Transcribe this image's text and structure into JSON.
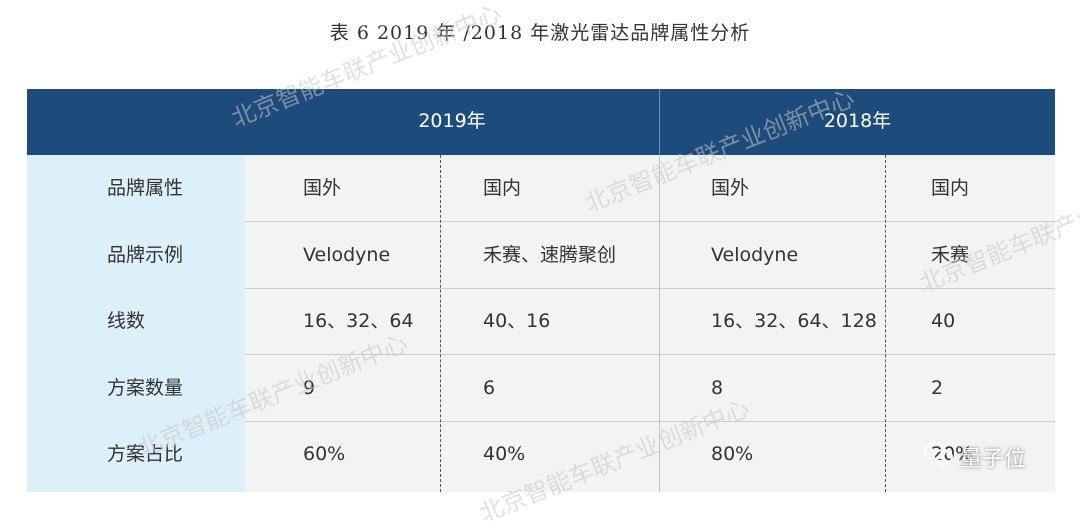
{
  "caption": "表 6 2019 年 /2018 年激光雷达品牌属性分析",
  "header": {
    "year_2019": "2019年",
    "year_2018": "2018年"
  },
  "rows": [
    {
      "label": "品牌属性",
      "c1": "国外",
      "c2": "国内",
      "c3": "国外",
      "c4": "国内"
    },
    {
      "label": "品牌示例",
      "c1": "Velodyne",
      "c2": "禾赛、速腾聚创",
      "c3": "Velodyne",
      "c4": "禾赛"
    },
    {
      "label": "线数",
      "c1": "16、32、64",
      "c2": "40、16",
      "c3": "16、32、64、128",
      "c4": "40"
    },
    {
      "label": "方案数量",
      "c1": "9",
      "c2": "6",
      "c3": "8",
      "c4": "2"
    },
    {
      "label": "方案占比",
      "c1": "60%",
      "c2": "40%",
      "c3": "80%",
      "c4": "20%"
    }
  ],
  "watermark": "北京智能车联产业创新中心",
  "badge": {
    "icon": "wechat-icon",
    "text": "量子位"
  },
  "colors": {
    "header_bg": "#1d4b7c",
    "label_col_bg": "#ddeff8",
    "body_bg": "#f2f3f3"
  }
}
